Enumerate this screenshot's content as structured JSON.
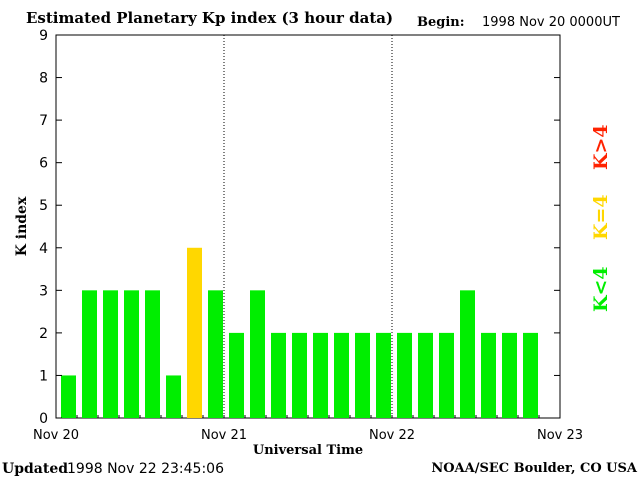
{
  "header": {
    "title": "Estimated Planetary Kp index (3 hour data)",
    "begin_label": "Begin:",
    "begin_value": "1998 Nov 20 0000UT"
  },
  "footer": {
    "updated_label": "Updated",
    "updated_value": "1998 Nov 22 23:45:06",
    "source": "NOAA/SEC Boulder, CO USA"
  },
  "legend": [
    {
      "label": "K<4",
      "color": "#00ee00"
    },
    {
      "label": "K=4",
      "color": "#ffd700"
    },
    {
      "label": "K>4",
      "color": "#ff2200"
    }
  ],
  "chart_data": {
    "type": "bar",
    "title": "Estimated Planetary Kp index (3 hour data)",
    "xlabel": "Universal Time",
    "ylabel": "K index",
    "ylim": [
      0,
      9
    ],
    "yticks": [
      0,
      1,
      2,
      3,
      4,
      5,
      6,
      7,
      8,
      9
    ],
    "xticks": [
      "Nov 20",
      "Nov 21",
      "Nov 22",
      "Nov 23"
    ],
    "day_separators": [
      "Nov 21",
      "Nov 22"
    ],
    "interval_hours": 3,
    "values": [
      1,
      3,
      3,
      3,
      3,
      1,
      4,
      3,
      2,
      3,
      2,
      2,
      2,
      2,
      2,
      2,
      2,
      2,
      2,
      3,
      2,
      2,
      2
    ],
    "colors": {
      "below4": "#00ee00",
      "equal4": "#ffd700",
      "above4": "#ff2200"
    }
  }
}
